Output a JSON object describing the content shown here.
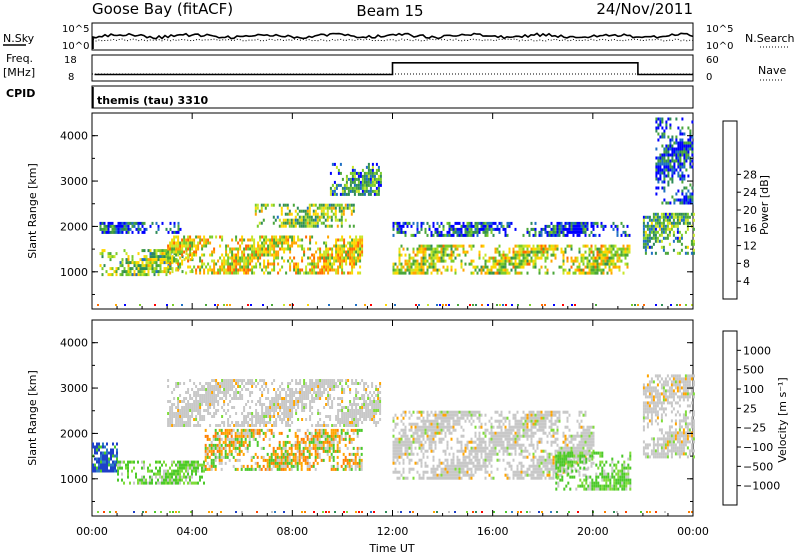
{
  "header": {
    "station": "Goose Bay (fitACF)",
    "beam": "Beam 15",
    "date": "24/Nov/2011"
  },
  "noise_panel": {
    "left_label": "N.Sky",
    "right_label": "N.Search",
    "ticks_left": [
      "10^5",
      "10^0"
    ],
    "ticks_right": [
      "10^5",
      "10^0"
    ]
  },
  "freq_panel": {
    "left_label_1": "Freq.",
    "left_label_2": "[MHz]",
    "right_label": "Nave",
    "ticks_left": [
      "18",
      "8"
    ],
    "ticks_right": [
      "60",
      "0"
    ]
  },
  "cpid": {
    "label": "CPID",
    "value": "themis (tau) 3310"
  },
  "chart_data": [
    {
      "type": "heatmap",
      "name": "power",
      "ylabel": "Slant Range [km]",
      "ylim": [
        180,
        4500
      ],
      "yticks": [
        "1000",
        "2000",
        "3000",
        "4000"
      ],
      "xlim_hours": [
        0,
        24
      ],
      "colorbar": {
        "label": "Power [dB]",
        "ticks": [
          "4",
          "8",
          "12",
          "16",
          "20",
          "24",
          "28"
        ],
        "colors": [
          "#0000ff",
          "#1e6fc4",
          "#2e8b57",
          "#4aa63a",
          "#7acc29",
          "#c8e62a",
          "#ffd700",
          "#ffa500",
          "#ff6a00",
          "#ff0000"
        ]
      },
      "bands": [
        {
          "t0": 0.3,
          "t1": 4.0,
          "r0": 950,
          "r1": 1500,
          "level": 0.45
        },
        {
          "t0": 0.3,
          "t1": 3.5,
          "r0": 1900,
          "r1": 2100,
          "level": 0.15
        },
        {
          "t0": 3.0,
          "t1": 10.8,
          "r0": 1000,
          "r1": 1800,
          "level": 0.6
        },
        {
          "t0": 6.5,
          "t1": 10.5,
          "r0": 2000,
          "r1": 2500,
          "level": 0.45
        },
        {
          "t0": 9.5,
          "t1": 11.5,
          "r0": 2700,
          "r1": 3400,
          "level": 0.3
        },
        {
          "t0": 12.0,
          "t1": 21.5,
          "r0": 1000,
          "r1": 1600,
          "level": 0.55
        },
        {
          "t0": 12.0,
          "t1": 21.5,
          "r0": 1800,
          "r1": 2100,
          "level": 0.15
        },
        {
          "t0": 22.0,
          "t1": 24.0,
          "r0": 1400,
          "r1": 2300,
          "level": 0.35
        },
        {
          "t0": 22.5,
          "t1": 24.0,
          "r0": 2500,
          "r1": 4400,
          "level": 0.12
        }
      ]
    },
    {
      "type": "heatmap",
      "name": "velocity",
      "ylabel": "Slant Range [km]",
      "ylim": [
        180,
        4500
      ],
      "yticks": [
        "1000",
        "2000",
        "3000",
        "4000"
      ],
      "xlim_hours": [
        0,
        24
      ],
      "xticks": [
        "00:00",
        "04:00",
        "08:00",
        "12:00",
        "16:00",
        "20:00",
        "00:00"
      ],
      "xlabel": "Time UT",
      "colorbar": {
        "label": "Velocity [m s⁻¹]",
        "ticks": [
          "1000",
          "500",
          "100",
          "25",
          "−25",
          "−100",
          "−500",
          "−1000"
        ],
        "colors": [
          "#1e40c8",
          "#2e7bc4",
          "#2e8b57",
          "#4cc92a",
          "#7fdc3a",
          "#c8c8c8",
          "#ffa500",
          "#ff7f00",
          "#ff4500",
          "#ff0000"
        ]
      },
      "bands": [
        {
          "t0": 0.0,
          "t1": 1.0,
          "r0": 1150,
          "r1": 1800,
          "vel": "pos_high"
        },
        {
          "t0": 1.0,
          "t1": 4.5,
          "r0": 900,
          "r1": 1400,
          "vel": "pos_low"
        },
        {
          "t0": 4.5,
          "t1": 10.8,
          "r0": 1200,
          "r1": 2100,
          "vel": "mixed"
        },
        {
          "t0": 3.0,
          "t1": 11.5,
          "r0": 2200,
          "r1": 3200,
          "vel": "gray"
        },
        {
          "t0": 12.0,
          "t1": 20.0,
          "r0": 1000,
          "r1": 2500,
          "vel": "gray"
        },
        {
          "t0": 18.5,
          "t1": 21.5,
          "r0": 800,
          "r1": 1600,
          "vel": "pos_low"
        },
        {
          "t0": 22.0,
          "t1": 24.0,
          "r0": 1500,
          "r1": 3300,
          "vel": "gray"
        }
      ]
    }
  ],
  "freq_series": {
    "freq_hours": [
      0.1,
      12.0,
      12.0,
      21.8,
      21.8,
      24.0
    ],
    "freq_mhz": [
      10.5,
      10.5,
      15.0,
      15.0,
      10.5,
      10.5
    ]
  }
}
